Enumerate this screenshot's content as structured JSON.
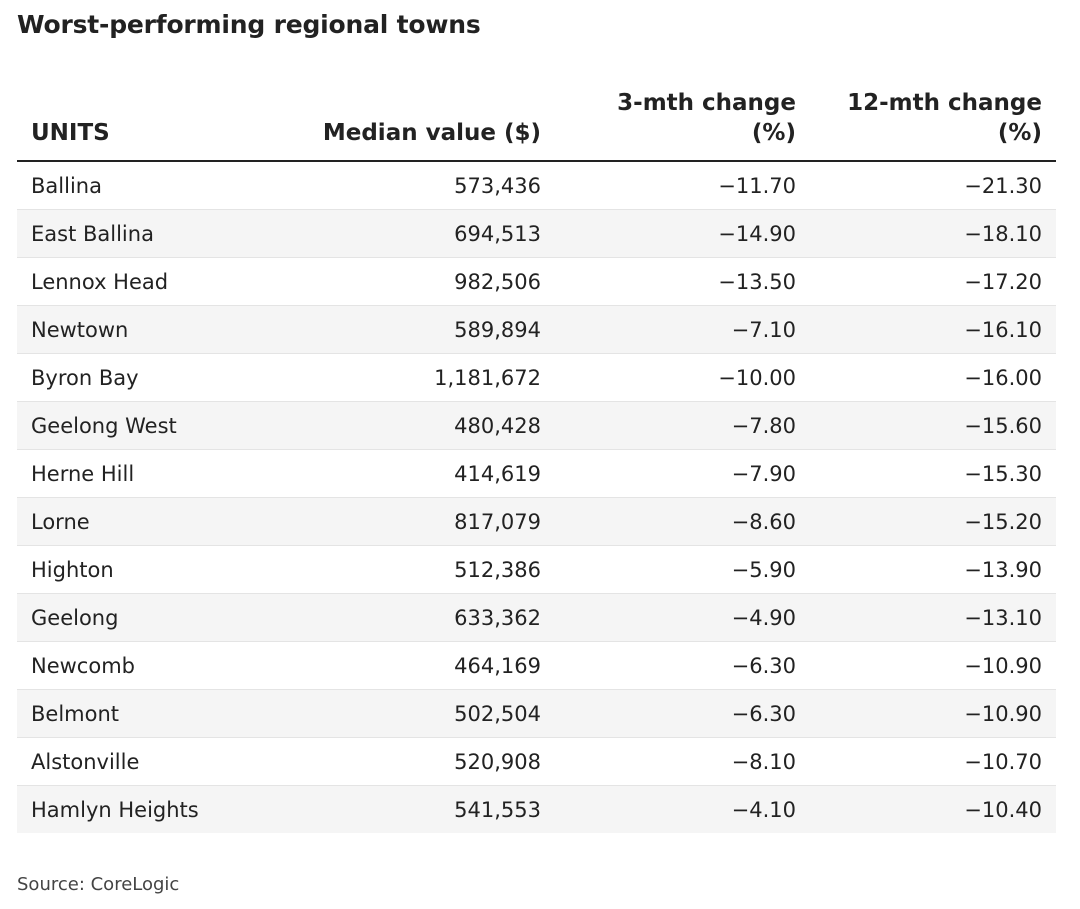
{
  "title": "Worst-performing regional towns",
  "source": "Source: CoreLogic",
  "chart_data": {
    "type": "table",
    "title": "Worst-performing regional towns",
    "columns": [
      "UNITS",
      "Median value ($)",
      "3-mth change (%)",
      "12-mth change (%)"
    ],
    "header_lines": [
      [
        " ",
        "UNITS"
      ],
      [
        " ",
        "Median value ($)"
      ],
      [
        "3-mth change",
        "(%)"
      ],
      [
        "12-mth change",
        "(%)"
      ]
    ],
    "rows": [
      [
        "Ballina",
        "573,436",
        "−11.70",
        "−21.30"
      ],
      [
        "East Ballina",
        "694,513",
        "−14.90",
        "−18.10"
      ],
      [
        "Lennox Head",
        "982,506",
        "−13.50",
        "−17.20"
      ],
      [
        "Newtown",
        "589,894",
        "−7.10",
        "−16.10"
      ],
      [
        "Byron Bay",
        "1,181,672",
        "−10.00",
        "−16.00"
      ],
      [
        "Geelong West",
        "480,428",
        "−7.80",
        "−15.60"
      ],
      [
        "Herne Hill",
        "414,619",
        "−7.90",
        "−15.30"
      ],
      [
        "Lorne",
        "817,079",
        "−8.60",
        "−15.20"
      ],
      [
        "Highton",
        "512,386",
        "−5.90",
        "−13.90"
      ],
      [
        "Geelong",
        "633,362",
        "−4.90",
        "−13.10"
      ],
      [
        "Newcomb",
        "464,169",
        "−6.30",
        "−10.90"
      ],
      [
        "Belmont",
        "502,504",
        "−6.30",
        "−10.90"
      ],
      [
        "Alstonville",
        "520,908",
        "−8.10",
        "−10.70"
      ],
      [
        "Hamlyn Heights",
        "541,553",
        "−4.10",
        "−10.40"
      ]
    ],
    "colors": {
      "text": "#222222",
      "stripe": "#f5f5f5",
      "header_rule": "#222222",
      "row_rule": "#e4e4e4"
    }
  }
}
